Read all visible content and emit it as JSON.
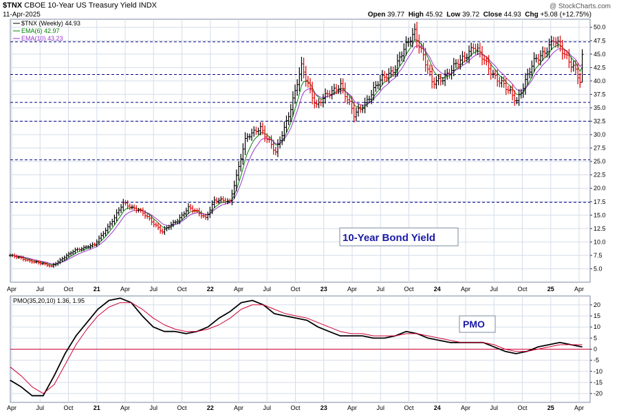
{
  "header": {
    "symbol": "$TNX",
    "description": "CBOE 10-Year US Treasury Yield INDX",
    "date": "11-Apr-2025",
    "watermark": "@ StockCharts.com",
    "ohlc": {
      "open_label": "Open",
      "open": "39.77",
      "high_label": "High",
      "high": "45.92",
      "low_label": "Low",
      "low": "39.72",
      "close_label": "Close",
      "close": "44.93",
      "chg_label": "Chg",
      "chg": "+5.08 (+12.75%)"
    }
  },
  "colors": {
    "up": "#000000",
    "down": "#e00000",
    "ema6": "#008000",
    "ema10": "#9933cc",
    "pmo": "#000000",
    "pmo_signal": "#cc0033",
    "zero_line": "#cc0033",
    "hline": "#000080",
    "grid": "#d4dde8",
    "label_text": "#1a1aa6"
  },
  "chart_data": [
    {
      "type": "ohlc",
      "title": "$TNX CBOE 10-Year US Treasury Yield INDX",
      "frequency": "Weekly",
      "legend": [
        {
          "label": "$TNX (Weekly) 44.93"
        },
        {
          "label": "EMA(6) 42.97"
        },
        {
          "label": "EMA(10) 43.23"
        }
      ],
      "annotation": "10-Year Bond Yield",
      "x_tick_labels": [
        "Apr",
        "Jul",
        "Oct",
        "21",
        "Apr",
        "Jul",
        "Oct",
        "22",
        "Apr",
        "Jul",
        "Oct",
        "23",
        "Apr",
        "Jul",
        "Oct",
        "24",
        "Apr",
        "Jul",
        "Oct",
        "25",
        "Apr"
      ],
      "y_ticks": [
        "5.0",
        "7.5",
        "10.0",
        "12.5",
        "15.0",
        "17.5",
        "20.0",
        "22.5",
        "25.0",
        "27.5",
        "30.0",
        "32.5",
        "35.0",
        "37.5",
        "40.0",
        "42.5",
        "45.0",
        "47.5",
        "50.0"
      ],
      "ylim": [
        2.5,
        51.5
      ],
      "horizontal_lines": [
        47.3,
        41.2,
        36.0,
        32.5,
        25.3,
        17.4
      ],
      "anchors": [
        {
          "date": "2020-03-27",
          "close": 7.5
        },
        {
          "date": "2020-05-29",
          "close": 6.5
        },
        {
          "date": "2020-08-07",
          "close": 5.5
        },
        {
          "date": "2020-10-23",
          "close": 8.5
        },
        {
          "date": "2020-12-25",
          "close": 9.5
        },
        {
          "date": "2021-02-26",
          "close": 14.5
        },
        {
          "date": "2021-03-26",
          "close": 17.2
        },
        {
          "date": "2021-05-14",
          "close": 16.0
        },
        {
          "date": "2021-07-30",
          "close": 12.0
        },
        {
          "date": "2021-09-17",
          "close": 14.0
        },
        {
          "date": "2021-10-22",
          "close": 16.5
        },
        {
          "date": "2021-12-17",
          "close": 14.5
        },
        {
          "date": "2022-01-14",
          "close": 17.8
        },
        {
          "date": "2022-03-04",
          "close": 17.5
        },
        {
          "date": "2022-04-22",
          "close": 29.0
        },
        {
          "date": "2022-06-10",
          "close": 31.5
        },
        {
          "date": "2022-07-29",
          "close": 26.5
        },
        {
          "date": "2022-09-16",
          "close": 35.0
        },
        {
          "date": "2022-10-21",
          "close": 42.5
        },
        {
          "date": "2022-12-09",
          "close": 35.5
        },
        {
          "date": "2023-02-24",
          "close": 39.5
        },
        {
          "date": "2023-04-07",
          "close": 33.5
        },
        {
          "date": "2023-05-19",
          "close": 36.5
        },
        {
          "date": "2023-07-07",
          "close": 40.5
        },
        {
          "date": "2023-08-18",
          "close": 42.5
        },
        {
          "date": "2023-10-20",
          "close": 49.5
        },
        {
          "date": "2023-12-15",
          "close": 39.5
        },
        {
          "date": "2024-02-09",
          "close": 41.5
        },
        {
          "date": "2024-04-26",
          "close": 46.5
        },
        {
          "date": "2024-06-14",
          "close": 42.5
        },
        {
          "date": "2024-08-09",
          "close": 38.5
        },
        {
          "date": "2024-09-13",
          "close": 36.5
        },
        {
          "date": "2024-11-08",
          "close": 43.5
        },
        {
          "date": "2025-01-10",
          "close": 47.5
        },
        {
          "date": "2025-03-14",
          "close": 43.0
        },
        {
          "date": "2025-04-04",
          "close": 39.8
        },
        {
          "date": "2025-04-11",
          "close": 44.93
        }
      ],
      "last_bar": {
        "date": "2025-04-11",
        "open": 39.77,
        "high": 45.92,
        "low": 39.72,
        "close": 44.93
      }
    },
    {
      "type": "line",
      "title": "PMO(35,20,10) 1.36, 1.95",
      "annotation": "PMO",
      "y_ticks": [
        "20",
        "15",
        "10",
        "5",
        "0",
        "-5",
        "-10",
        "-15",
        "-20"
      ],
      "ylim": [
        -24,
        24
      ],
      "series": [
        {
          "name": "PMO",
          "color": "#000000",
          "values": [
            -14,
            -17,
            -21,
            -21,
            -12,
            -2,
            6,
            12,
            18,
            22,
            23,
            21,
            15,
            10,
            8,
            8,
            7,
            8,
            10,
            14,
            17,
            21,
            22,
            20,
            16,
            15,
            14,
            13,
            10,
            8,
            6,
            6,
            6,
            5,
            5,
            6,
            8,
            7,
            5,
            4,
            3,
            3,
            3,
            3,
            1,
            -1,
            -2,
            -1,
            1,
            2,
            3,
            2,
            1
          ]
        },
        {
          "name": "Signal",
          "color": "#cc0033",
          "values": [
            -8,
            -12,
            -17,
            -20,
            -16,
            -7,
            2,
            9,
            15,
            19,
            21,
            21,
            18,
            14,
            11,
            9,
            8,
            8,
            9,
            11,
            14,
            18,
            20,
            20,
            18,
            16,
            15,
            14,
            12,
            10,
            8,
            7,
            7,
            6,
            6,
            6,
            7,
            7,
            6,
            5,
            4,
            3,
            3,
            3,
            2,
            0,
            -1,
            -1,
            0,
            1,
            2,
            2,
            2
          ]
        }
      ]
    }
  ]
}
